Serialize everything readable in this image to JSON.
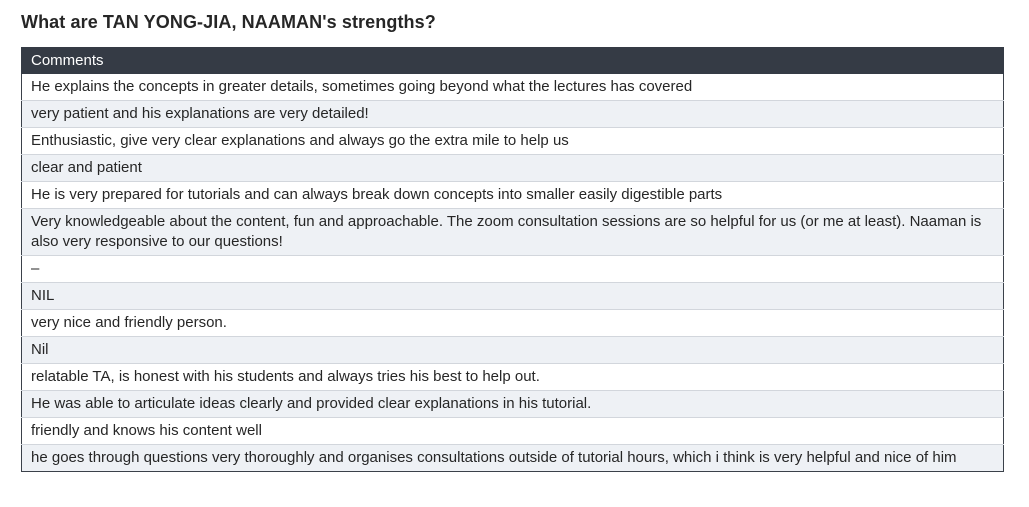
{
  "question": "What are TAN YONG-JIA, NAAMAN's strengths?",
  "table": {
    "header": "Comments",
    "rows": [
      "He explains the concepts in greater details, sometimes going beyond what the lectures has covered",
      "very patient and his explanations are very detailed!",
      "Enthusiastic, give very clear explanations and always go the extra mile to help us",
      "clear and patient",
      "He is very prepared for tutorials and can always break down concepts into smaller easily digestible parts",
      "Very knowledgeable about the content, fun and approachable. The zoom consultation sessions are so helpful for us (or me at least). Naaman is also very responsive to our questions!",
      "–",
      "NIL",
      "very nice and friendly person.",
      "Nil",
      "relatable TA, is honest with his students and always tries his best to help out.",
      "He was able to articulate ideas clearly and provided clear explanations in his tutorial.",
      "friendly and knows his content well",
      "he goes through questions very thoroughly and organises consultations outside of tutorial hours, which i think is very helpful and nice of him"
    ]
  },
  "colors": {
    "header_bg": "#353b45",
    "alt_row_bg": "#eef1f5"
  }
}
